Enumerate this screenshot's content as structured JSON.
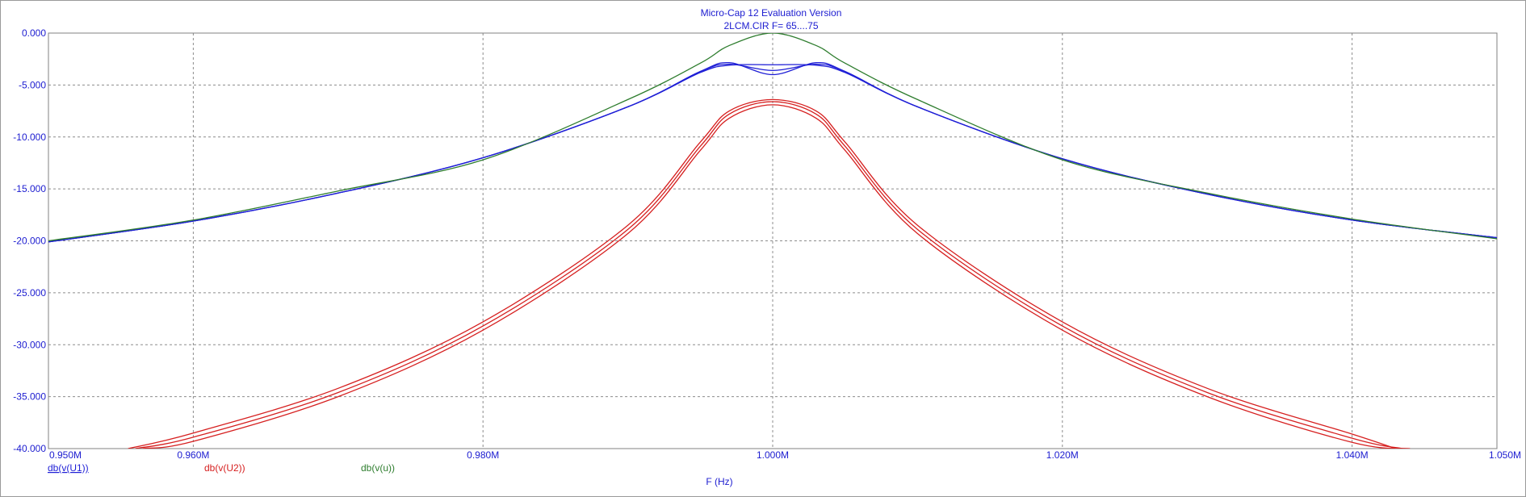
{
  "chart_data": {
    "type": "line",
    "title": "Micro-Cap 12 Evaluation Version",
    "subtitle": "2LCM.CIR F= 65....75",
    "xlabel": "F (Hz)",
    "ylabel": "",
    "x_unit": "Hz",
    "xlim": [
      950000,
      1050000
    ],
    "ylim": [
      -40,
      0
    ],
    "x_ticks": [
      950000,
      960000,
      980000,
      1000000,
      1020000,
      1040000,
      1050000
    ],
    "x_tick_labels": [
      "0.950M",
      "0.960M",
      "0.980M",
      "1.000M",
      "1.020M",
      "1.040M",
      "1.050M"
    ],
    "y_ticks": [
      0,
      -5,
      -10,
      -15,
      -20,
      -25,
      -30,
      -35,
      -40
    ],
    "y_tick_labels": [
      "0.000",
      "-5.000",
      "-10.000",
      "-15.000",
      "-20.000",
      "-25.000",
      "-30.000",
      "-35.000",
      "-40.000"
    ],
    "grid": true,
    "grid_style": "dashed",
    "legend_placement": "bottom-left",
    "series": [
      {
        "name": "db(v(U1))",
        "color": "#1f1fd6",
        "runs": [
          {
            "x": [
              950000,
              960000,
              970000,
              980000,
              990000,
              995000,
              997000,
              1000000,
              1003000,
              1005000,
              1010000,
              1020000,
              1030000,
              1040000,
              1050000
            ],
            "y": [
              -20.1,
              -18.1,
              -15.4,
              -12.0,
              -7.1,
              -3.8,
              -3.1,
              -3.05,
              -3.1,
              -3.8,
              -7.1,
              -12.1,
              -15.5,
              -18.0,
              -19.7
            ]
          },
          {
            "x": [
              950000,
              960000,
              970000,
              980000,
              990000,
              995000,
              997000,
              1000000,
              1003000,
              1005000,
              1010000,
              1020000,
              1030000,
              1040000,
              1050000
            ],
            "y": [
              -20.1,
              -18.1,
              -15.4,
              -12.0,
              -7.1,
              -3.7,
              -3.0,
              -3.6,
              -3.0,
              -3.7,
              -7.1,
              -12.1,
              -15.5,
              -18.0,
              -19.7
            ]
          },
          {
            "x": [
              950000,
              960000,
              970000,
              980000,
              990000,
              995000,
              997000,
              1000000,
              1003000,
              1005000,
              1010000,
              1020000,
              1030000,
              1040000,
              1050000
            ],
            "y": [
              -20.1,
              -18.1,
              -15.4,
              -12.0,
              -7.1,
              -3.7,
              -2.85,
              -4.0,
              -2.85,
              -3.7,
              -7.1,
              -12.1,
              -15.5,
              -18.0,
              -19.7
            ]
          }
        ]
      },
      {
        "name": "db(v(U2))",
        "color": "#d62020",
        "runs": [
          {
            "x": [
              955500,
              960000,
              970000,
              980000,
              990000,
              995000,
              997000,
              1000000,
              1003000,
              1005000,
              1010000,
              1020000,
              1030000,
              1040000,
              1043000
            ],
            "y": [
              -40.0,
              -38.5,
              -34.2,
              -27.8,
              -18.5,
              -10.5,
              -7.5,
              -6.4,
              -7.5,
              -10.5,
              -18.5,
              -27.8,
              -34.2,
              -38.6,
              -40.0
            ]
          },
          {
            "x": [
              956000,
              960000,
              970000,
              980000,
              990000,
              995000,
              997000,
              1000000,
              1003000,
              1005000,
              1010000,
              1020000,
              1030000,
              1040000,
              1043500
            ],
            "y": [
              -40.0,
              -38.9,
              -34.6,
              -28.2,
              -18.9,
              -10.9,
              -7.8,
              -6.6,
              -7.8,
              -10.9,
              -18.9,
              -28.2,
              -34.6,
              -39.0,
              -40.0
            ]
          },
          {
            "x": [
              956500,
              960000,
              970000,
              980000,
              990000,
              995000,
              997000,
              1000000,
              1003000,
              1005000,
              1010000,
              1020000,
              1030000,
              1040000,
              1044000
            ],
            "y": [
              -40.0,
              -39.3,
              -35.0,
              -28.6,
              -19.3,
              -11.3,
              -8.2,
              -6.9,
              -8.2,
              -11.3,
              -19.3,
              -28.6,
              -35.0,
              -39.4,
              -40.0
            ]
          }
        ]
      },
      {
        "name": "db(v(u))",
        "color": "#2e7d2e",
        "runs": [
          {
            "x": [
              950000,
              960000,
              970000,
              980000,
              990000,
              995000,
              997000,
              1000000,
              1003000,
              1005000,
              1010000,
              1020000,
              1030000,
              1040000,
              1050000
            ],
            "y": [
              -20.0,
              -18.0,
              -15.2,
              -12.2,
              -6.4,
              -2.9,
              -1.2,
              0.0,
              -1.2,
              -2.9,
              -6.4,
              -12.2,
              -15.4,
              -17.9,
              -19.8
            ]
          }
        ]
      }
    ]
  }
}
